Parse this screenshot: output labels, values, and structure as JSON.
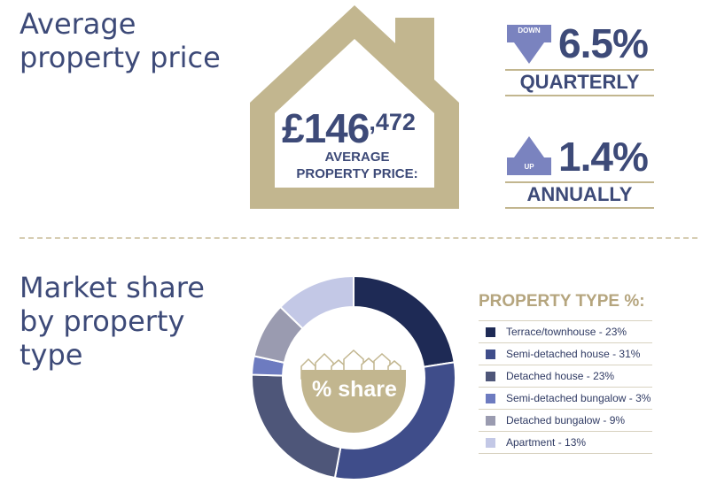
{
  "section1": {
    "heading": "Average\nproperty price"
  },
  "house": {
    "price_main": "£146",
    "price_small": ",472",
    "label": "AVERAGE\nPROPERTY PRICE:"
  },
  "quarterly": {
    "badge": "DOWN",
    "value": "6.5%",
    "period": "QUARTERLY"
  },
  "annual": {
    "badge": "UP",
    "value": "1.4%",
    "period": "ANNUALLY"
  },
  "section2": {
    "heading": "Market share\nby property\ntype"
  },
  "center_label": "% share",
  "legend_title": "PROPERTY TYPE %:",
  "colors": {
    "navy": "#3d4a78",
    "gold": "#c2b68f",
    "arrow": "#7a83bf"
  },
  "chart_data": {
    "type": "pie",
    "title": "PROPERTY TYPE %:",
    "series": [
      {
        "name": "Terrace/townhouse",
        "label": "Terrace/townhouse - 23%",
        "value": 23,
        "color": "#1e2a55"
      },
      {
        "name": "Semi-detached house",
        "label": "Semi-detached house - 31%",
        "value": 31,
        "color": "#3f4d8a"
      },
      {
        "name": "Detached house",
        "label": "Detached house - 23%",
        "value": 23,
        "color": "#4e5679"
      },
      {
        "name": "Semi-detached bungalow",
        "label": "Semi-detached bungalow - 3%",
        "value": 3,
        "color": "#6d7bc0"
      },
      {
        "name": "Detached bungalow",
        "label": "Detached bungalow - 9%",
        "value": 9,
        "color": "#9a9bb0"
      },
      {
        "name": "Apartment",
        "label": "Apartment - 13%",
        "value": 13,
        "color": "#c3c8e6"
      }
    ]
  }
}
